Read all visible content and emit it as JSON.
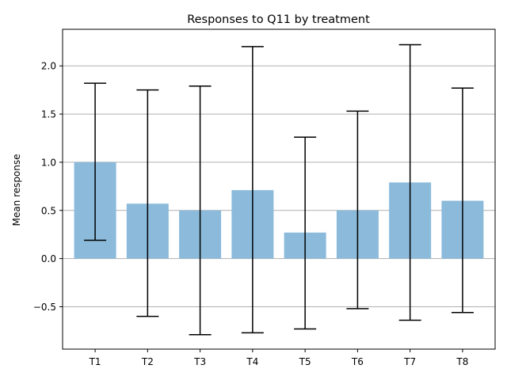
{
  "chart_data": {
    "type": "bar",
    "title": "Responses to Q11 by treatment",
    "xlabel": "",
    "ylabel": "Mean response",
    "categories": [
      "T1",
      "T2",
      "T3",
      "T4",
      "T5",
      "T6",
      "T7",
      "T8"
    ],
    "values": [
      1.0,
      0.57,
      0.5,
      0.71,
      0.27,
      0.5,
      0.79,
      0.6
    ],
    "error_low": [
      0.19,
      -0.6,
      -0.79,
      -0.77,
      -0.73,
      -0.52,
      -0.64,
      -0.56
    ],
    "error_high": [
      1.82,
      1.75,
      1.79,
      2.2,
      1.26,
      1.53,
      2.22,
      1.77
    ],
    "ylim": [
      -0.94,
      2.38
    ],
    "yticks": [
      -0.5,
      0.0,
      0.5,
      1.0,
      1.5,
      2.0
    ],
    "ytick_labels": [
      "−0.5",
      "0.0",
      "0.5",
      "1.0",
      "1.5",
      "2.0"
    ],
    "grid": "y",
    "bar_color": "#8bbadb",
    "error_color": "#000000",
    "grid_color": "#b0b0b0"
  }
}
